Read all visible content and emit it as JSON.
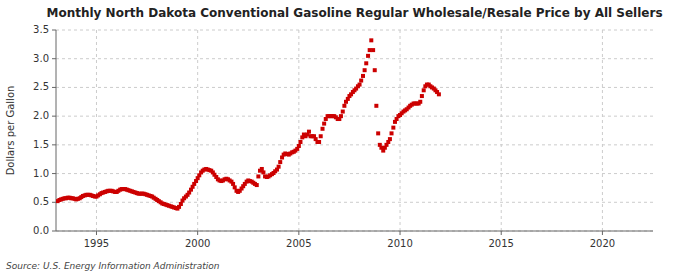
{
  "chart_data": {
    "type": "scatter",
    "title": "Monthly North Dakota Conventional Gasoline Regular Wholesale/Resale Price by All Sellers",
    "y_label": "Dollars per Gallon",
    "annotations": [
      "Source: U.S. Energy Information Administration"
    ],
    "color": "#cc0000",
    "marker": "square",
    "grid": true,
    "xlim": [
      1993.0,
      2022.5
    ],
    "ylim": [
      0.0,
      3.5
    ],
    "xticks": [
      1995,
      2000,
      2005,
      2010,
      2015,
      2020
    ],
    "yticks": [
      {
        "value": 0.0,
        "label": "0.0"
      },
      0.5,
      {
        "value": 1.0,
        "label": "1.0"
      },
      1.5,
      {
        "value": 2.0,
        "label": "2.0"
      },
      2.5,
      {
        "value": 3.0,
        "label": "3.0"
      },
      3.5
    ],
    "x": [
      1993.08,
      1993.17,
      1993.25,
      1993.33,
      1993.42,
      1993.5,
      1993.58,
      1993.67,
      1993.75,
      1993.83,
      1993.92,
      1994.0,
      1994.08,
      1994.17,
      1994.25,
      1994.33,
      1994.42,
      1994.5,
      1994.58,
      1994.67,
      1994.75,
      1994.83,
      1994.92,
      1995.0,
      1995.08,
      1995.17,
      1995.25,
      1995.33,
      1995.42,
      1995.5,
      1995.58,
      1995.67,
      1995.75,
      1995.83,
      1995.92,
      1996.0,
      1996.08,
      1996.17,
      1996.25,
      1996.33,
      1996.42,
      1996.5,
      1996.58,
      1996.67,
      1996.75,
      1996.83,
      1996.92,
      1997.0,
      1997.08,
      1997.17,
      1997.25,
      1997.33,
      1997.42,
      1997.5,
      1997.58,
      1997.67,
      1997.75,
      1997.83,
      1997.92,
      1998.0,
      1998.08,
      1998.17,
      1998.25,
      1998.33,
      1998.42,
      1998.5,
      1998.58,
      1998.67,
      1998.75,
      1998.83,
      1998.92,
      1999.0,
      1999.08,
      1999.17,
      1999.25,
      1999.33,
      1999.42,
      1999.5,
      1999.58,
      1999.67,
      1999.75,
      1999.83,
      1999.92,
      2000.0,
      2000.08,
      2000.17,
      2000.25,
      2000.33,
      2000.42,
      2000.5,
      2000.58,
      2000.67,
      2000.75,
      2000.83,
      2000.92,
      2001.0,
      2001.08,
      2001.17,
      2001.25,
      2001.33,
      2001.42,
      2001.5,
      2001.58,
      2001.67,
      2001.75,
      2001.83,
      2001.92,
      2002.0,
      2002.08,
      2002.17,
      2002.25,
      2002.33,
      2002.42,
      2002.5,
      2002.58,
      2002.67,
      2002.75,
      2002.83,
      2002.92,
      2003.0,
      2003.08,
      2003.17,
      2003.25,
      2003.33,
      2003.42,
      2003.5,
      2003.58,
      2003.67,
      2003.75,
      2003.83,
      2003.92,
      2004.0,
      2004.08,
      2004.17,
      2004.25,
      2004.33,
      2004.42,
      2004.5,
      2004.58,
      2004.67,
      2004.75,
      2004.83,
      2004.92,
      2005.0,
      2005.08,
      2005.17,
      2005.25,
      2005.33,
      2005.42,
      2005.5,
      2005.58,
      2005.67,
      2005.75,
      2005.83,
      2005.92,
      2006.0,
      2006.08,
      2006.17,
      2006.25,
      2006.33,
      2006.42,
      2006.5,
      2006.58,
      2006.67,
      2006.75,
      2006.83,
      2006.92,
      2007.0,
      2007.08,
      2007.17,
      2007.25,
      2007.33,
      2007.42,
      2007.5,
      2007.58,
      2007.67,
      2007.75,
      2007.83,
      2007.92,
      2008.0,
      2008.08,
      2008.17,
      2008.25,
      2008.33,
      2008.42,
      2008.5,
      2008.58,
      2008.67,
      2008.75,
      2008.83,
      2008.92,
      2009.0,
      2009.08,
      2009.17,
      2009.25,
      2009.33,
      2009.42,
      2009.5,
      2009.58,
      2009.67,
      2009.75,
      2009.83,
      2009.92,
      2010.0,
      2010.08,
      2010.17,
      2010.25,
      2010.33,
      2010.42,
      2010.5,
      2010.58,
      2010.67,
      2010.75,
      2010.83,
      2010.92,
      2011.0,
      2011.08,
      2011.17,
      2011.25,
      2011.33,
      2011.42,
      2011.5,
      2011.58,
      2011.67,
      2011.75,
      2011.83,
      2011.92
    ],
    "values": [
      0.52,
      0.54,
      0.55,
      0.56,
      0.57,
      0.57,
      0.58,
      0.58,
      0.57,
      0.57,
      0.56,
      0.55,
      0.56,
      0.57,
      0.59,
      0.61,
      0.62,
      0.63,
      0.63,
      0.63,
      0.62,
      0.61,
      0.6,
      0.6,
      0.62,
      0.64,
      0.66,
      0.67,
      0.68,
      0.69,
      0.7,
      0.7,
      0.7,
      0.69,
      0.68,
      0.68,
      0.7,
      0.72,
      0.73,
      0.73,
      0.73,
      0.72,
      0.71,
      0.7,
      0.69,
      0.68,
      0.67,
      0.66,
      0.65,
      0.65,
      0.65,
      0.65,
      0.64,
      0.63,
      0.62,
      0.61,
      0.6,
      0.58,
      0.56,
      0.54,
      0.52,
      0.5,
      0.48,
      0.47,
      0.46,
      0.45,
      0.44,
      0.43,
      0.42,
      0.41,
      0.4,
      0.39,
      0.42,
      0.47,
      0.53,
      0.57,
      0.6,
      0.63,
      0.67,
      0.72,
      0.77,
      0.82,
      0.87,
      0.92,
      0.97,
      1.02,
      1.05,
      1.07,
      1.08,
      1.07,
      1.06,
      1.05,
      1.02,
      0.98,
      0.94,
      0.9,
      0.88,
      0.87,
      0.88,
      0.9,
      0.91,
      0.9,
      0.88,
      0.86,
      0.82,
      0.76,
      0.7,
      0.68,
      0.7,
      0.74,
      0.78,
      0.82,
      0.86,
      0.88,
      0.87,
      0.86,
      0.84,
      0.82,
      0.8,
      0.95,
      1.05,
      1.08,
      1.02,
      0.95,
      0.94,
      0.95,
      0.97,
      0.99,
      1.01,
      1.04,
      1.07,
      1.12,
      1.2,
      1.28,
      1.33,
      1.35,
      1.34,
      1.33,
      1.35,
      1.37,
      1.38,
      1.4,
      1.43,
      1.48,
      1.55,
      1.63,
      1.68,
      1.65,
      1.68,
      1.73,
      1.65,
      1.65,
      1.65,
      1.6,
      1.55,
      1.55,
      1.65,
      1.78,
      1.87,
      1.95,
      2.0,
      2.0,
      2.0,
      2.0,
      2.0,
      1.98,
      1.95,
      1.95,
      2.0,
      2.08,
      2.18,
      2.25,
      2.3,
      2.35,
      2.38,
      2.42,
      2.45,
      2.48,
      2.52,
      2.55,
      2.62,
      2.7,
      2.8,
      2.92,
      3.05,
      3.15,
      3.32,
      3.15,
      2.8,
      2.18,
      1.7,
      1.5,
      1.45,
      1.4,
      1.45,
      1.5,
      1.55,
      1.6,
      1.7,
      1.8,
      1.9,
      1.95,
      2.0,
      2.02,
      2.05,
      2.08,
      2.1,
      2.12,
      2.15,
      2.18,
      2.2,
      2.22,
      2.22,
      2.22,
      2.22,
      2.25,
      2.35,
      2.45,
      2.52,
      2.55,
      2.55,
      2.52,
      2.5,
      2.48,
      2.45,
      2.42,
      2.38
    ]
  }
}
